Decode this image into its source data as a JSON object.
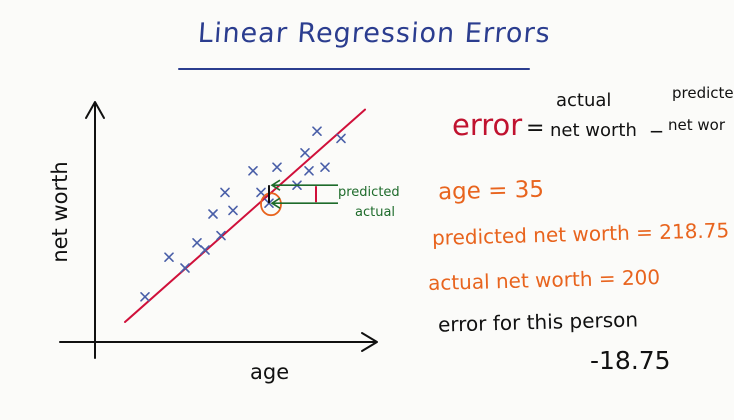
{
  "title": "Linear Regression Errors",
  "chart": {
    "xlabel": "age",
    "ylabel": "net worth",
    "predicted_tag": "predicted",
    "actual_tag": "actual",
    "marker": "x",
    "colors": {
      "axis": "#111111",
      "line": "#d0103a",
      "points": "#4a5fa8",
      "highlight": "#e8641e",
      "error_bar": "#d0103a",
      "arrow": "#1e6b2b"
    }
  },
  "chart_data": {
    "type": "scatter",
    "title": "",
    "xlabel": "age",
    "ylabel": "net worth",
    "points": [
      {
        "x": 1.0,
        "y": 1.2
      },
      {
        "x": 1.6,
        "y": 2.3
      },
      {
        "x": 2.0,
        "y": 2.0
      },
      {
        "x": 2.3,
        "y": 2.7
      },
      {
        "x": 2.5,
        "y": 2.5
      },
      {
        "x": 2.9,
        "y": 2.9
      },
      {
        "x": 2.7,
        "y": 3.5
      },
      {
        "x": 3.0,
        "y": 4.1
      },
      {
        "x": 3.2,
        "y": 3.6
      },
      {
        "x": 3.7,
        "y": 4.7
      },
      {
        "x": 3.9,
        "y": 4.1
      },
      {
        "x": 4.3,
        "y": 4.8
      },
      {
        "x": 4.8,
        "y": 4.3
      },
      {
        "x": 5.0,
        "y": 5.2
      },
      {
        "x": 5.1,
        "y": 4.7
      },
      {
        "x": 5.3,
        "y": 5.8
      },
      {
        "x": 5.5,
        "y": 4.8
      },
      {
        "x": 5.9,
        "y": 5.6
      },
      {
        "x": 4.1,
        "y": 3.8
      }
    ],
    "regression_line": {
      "x": [
        0.5,
        6.5
      ],
      "y": [
        0.5,
        6.4
      ]
    },
    "highlighted_point": {
      "x": 4.1,
      "y": 3.8,
      "predicted_y": 4.3
    }
  },
  "formula": {
    "error_word": "error",
    "equals": "=",
    "actual_top": "actual",
    "actual_bottom": "net worth",
    "minus": "_",
    "predicted_top": "predicte",
    "predicted_bottom": "net wor"
  },
  "example": {
    "age": "age = 35",
    "predicted": "predicted net worth = 218.75",
    "actual": "actual net worth = 200",
    "error_label": "error for this person",
    "error_value": "-18.75"
  }
}
